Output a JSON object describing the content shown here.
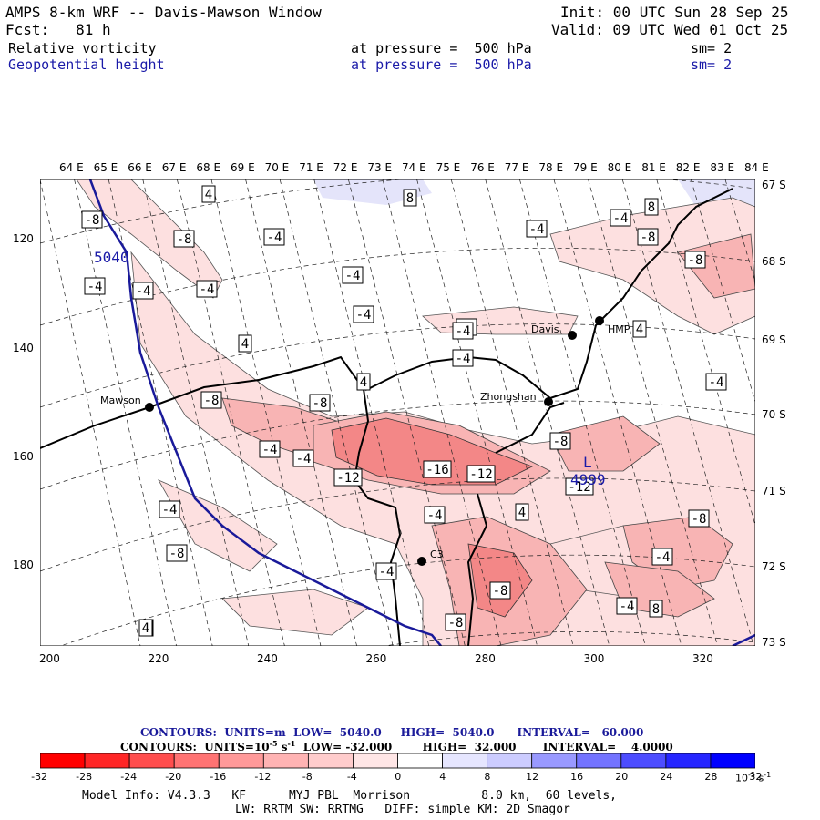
{
  "header": {
    "title": "AMPS 8-km WRF -- Davis-Mawson Window",
    "init": "Init: 00 UTC Sun 28 Sep 25",
    "fcst": "Fcst:   81 h",
    "valid": "Valid: 09 UTC Wed 01 Oct 25",
    "field1": {
      "name": "Relative vorticity",
      "level": "at pressure =  500 hPa",
      "sm": "sm= 2"
    },
    "field2": {
      "name": "Geopotential height",
      "level": "at pressure =  500 hPa",
      "sm": "sm= 2"
    }
  },
  "map": {
    "top_lon_labels": [
      "64 E",
      "65 E",
      "66 E",
      "67 E",
      "68 E",
      "69 E",
      "70 E",
      "71 E",
      "72 E",
      "73 E",
      "74 E",
      "75 E",
      "76 E",
      "77 E",
      "78 E",
      "79 E",
      "80 E",
      "81 E",
      "82 E",
      "83 E",
      "84 E"
    ],
    "right_lat_labels": [
      "67 S",
      "68 S",
      "69 S",
      "70 S",
      "71 S",
      "72 S",
      "73 S"
    ],
    "left_y_labels": [
      "120",
      "140",
      "160",
      "180"
    ],
    "bottom_x_labels": [
      "200",
      "220",
      "240",
      "260",
      "280",
      "300",
      "320"
    ],
    "stations": [
      {
        "name": "Mawson"
      },
      {
        "name": "Davis"
      },
      {
        "name": "HMP"
      },
      {
        "name": "Zhongshan"
      },
      {
        "name": "C3"
      }
    ],
    "height_labels": [
      "5040",
      "L",
      "4999"
    ],
    "vorticity_labels": [
      "-8",
      "-8",
      "-4",
      "-4",
      "-4",
      "-4",
      "4",
      "-4",
      "-4",
      "4",
      "8",
      "4",
      "8",
      "-4",
      "-8",
      "-8",
      "-4",
      "-8",
      "-4",
      "4",
      "-4",
      "-8",
      "-8",
      "-4",
      "-4",
      "-12",
      "-16",
      "-12",
      "-8",
      "-12",
      "-4",
      "4",
      "-4",
      "-8",
      "-4",
      "-8",
      "-8",
      "-4",
      "-8",
      "4",
      "4",
      "-4",
      "8",
      "-4"
    ],
    "colors": {
      "neg_shade": "#f08080",
      "pos_shade": "#c8c8f0",
      "height_line": "#1a1a9a",
      "coast": "#000000"
    }
  },
  "contour_info": {
    "line1": "CONTOURS:  UNITS=m  LOW=  5040.0     HIGH=  5040.0      INTERVAL=   60.000",
    "line2_a": "CONTOURS:  UNITS=10",
    "line2_exp": "-5",
    "line2_b": " s",
    "line2_exp2": "-1",
    "line2_c": "  LOW= -32.000        HIGH=  32.000       INTERVAL=    4.0000"
  },
  "colorbar": {
    "ticks": [
      "-32",
      "-28",
      "-24",
      "-20",
      "-16",
      "-12",
      "-8",
      "-4",
      "0",
      "4",
      "8",
      "12",
      "16",
      "20",
      "24",
      "28",
      "32"
    ],
    "unit": "10",
    "unit_exp": "-5",
    "unit_s": "s",
    "unit_exp2": "-1",
    "colors": [
      "#ff0000",
      "#ff2626",
      "#ff4d4d",
      "#ff7373",
      "#ff9999",
      "#ffb3b3",
      "#ffcccc",
      "#ffe6e6",
      "#ffffff",
      "#ffffff",
      "#e6e6ff",
      "#ccccff",
      "#9999ff",
      "#7373ff",
      "#4d4dff",
      "#2626ff",
      "#0000ff"
    ]
  },
  "footer": {
    "line1": "Model Info: V4.3.3   KF      MYJ PBL  Morrison          8.0 km,  60 levels,",
    "line2": "LW: RRTM SW: RRTMG   DIFF: simple KM: 2D Smagor"
  }
}
